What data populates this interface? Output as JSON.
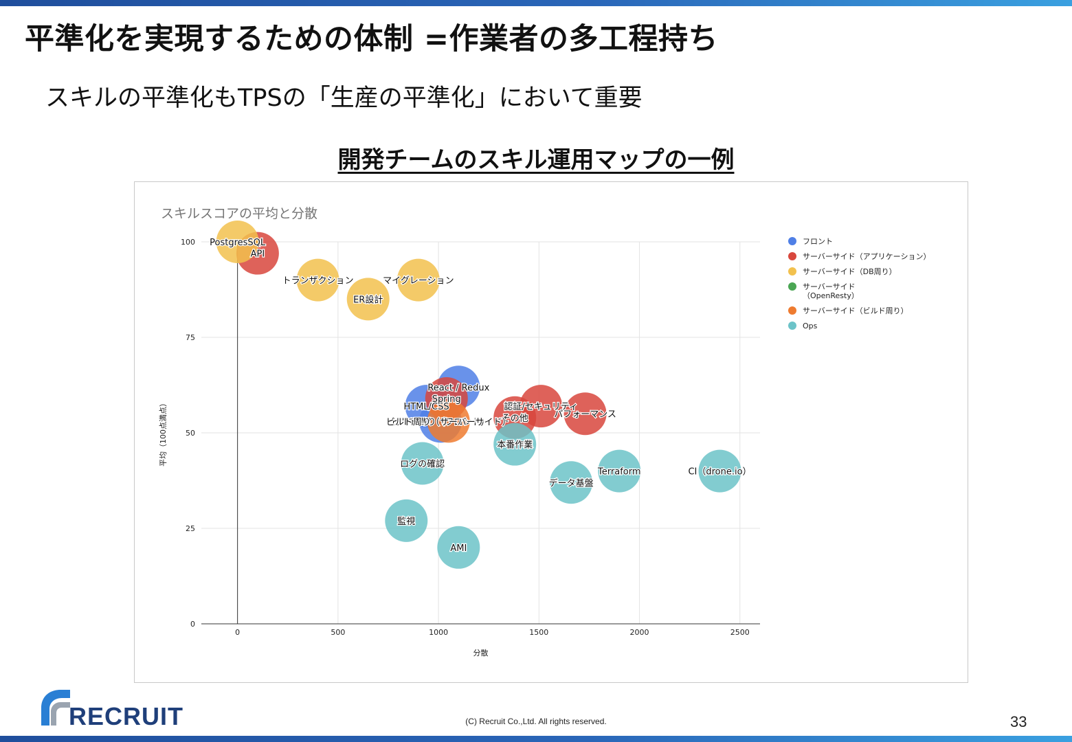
{
  "slide": {
    "title": "平準化を実現するための体制 =作業者の多工程持ち",
    "subtitle": "スキルの平準化もTPSの「生産の平準化」において重要",
    "section_heading": "開発チームのスキル運用マップの一例",
    "copyright": "(C) Recruit Co.,Ltd. All rights reserved.",
    "page_number": "33",
    "logo_text": "RECRUIT"
  },
  "colors": {
    "accent_bar": "#2a66b8",
    "logo": "#1f3f7a"
  },
  "chart_data": {
    "type": "scatter",
    "title": "スキルスコアの平均と分散",
    "xlabel": "分散",
    "ylabel": "平均（100点満点）",
    "xlim": [
      -180,
      2600
    ],
    "ylim": [
      0,
      100
    ],
    "xticks": [
      0,
      500,
      1000,
      1500,
      2000,
      2500
    ],
    "yticks": [
      0,
      25,
      50,
      75,
      100
    ],
    "grid": true,
    "legend_position": "right",
    "series": [
      {
        "name": "フロント",
        "color": "#4f7fe6",
        "points": [
          {
            "label": "React / Redux",
            "x": 1100,
            "y": 62
          },
          {
            "label": "HTML/CSS",
            "x": 940,
            "y": 57
          },
          {
            "label": "ビルド周り（フロント）",
            "x": 1010,
            "y": 53
          }
        ]
      },
      {
        "name": "サーバーサイド（アプリケーション）",
        "color": "#d8473d",
        "points": [
          {
            "label": "API",
            "x": 100,
            "y": 97
          },
          {
            "label": "Spring",
            "x": 1040,
            "y": 59
          },
          {
            "label": "認証/セキュリティ",
            "x": 1510,
            "y": 57
          },
          {
            "label": "パフォーマンス",
            "x": 1730,
            "y": 55
          },
          {
            "label": "その他",
            "x": 1380,
            "y": 54
          }
        ]
      },
      {
        "name": "サーバーサイド（DB周り）",
        "color": "#f2c14e",
        "points": [
          {
            "label": "PostgresSQL",
            "x": 0,
            "y": 100
          },
          {
            "label": "トランザクション",
            "x": 400,
            "y": 90
          },
          {
            "label": "マイグレーション",
            "x": 900,
            "y": 90
          },
          {
            "label": "ER設計",
            "x": 650,
            "y": 85
          }
        ]
      },
      {
        "name": "サーバーサイド\n（OpenResty）",
        "color": "#4aa653",
        "points": []
      },
      {
        "name": "サーバーサイド（ビルド周り）",
        "color": "#ee7b30",
        "points": [
          {
            "label": "ビルド周り（サーバーサイド）",
            "x": 1050,
            "y": 53
          }
        ]
      },
      {
        "name": "Ops",
        "color": "#6cc3c8",
        "points": [
          {
            "label": "本番作業",
            "x": 1380,
            "y": 47
          },
          {
            "label": "ログの確認",
            "x": 920,
            "y": 42
          },
          {
            "label": "Terraform",
            "x": 1900,
            "y": 40
          },
          {
            "label": "CI（drone.io）",
            "x": 2400,
            "y": 40
          },
          {
            "label": "データ基盤",
            "x": 1660,
            "y": 37
          },
          {
            "label": "監視",
            "x": 840,
            "y": 27
          },
          {
            "label": "AMI",
            "x": 1100,
            "y": 20
          }
        ]
      }
    ]
  }
}
